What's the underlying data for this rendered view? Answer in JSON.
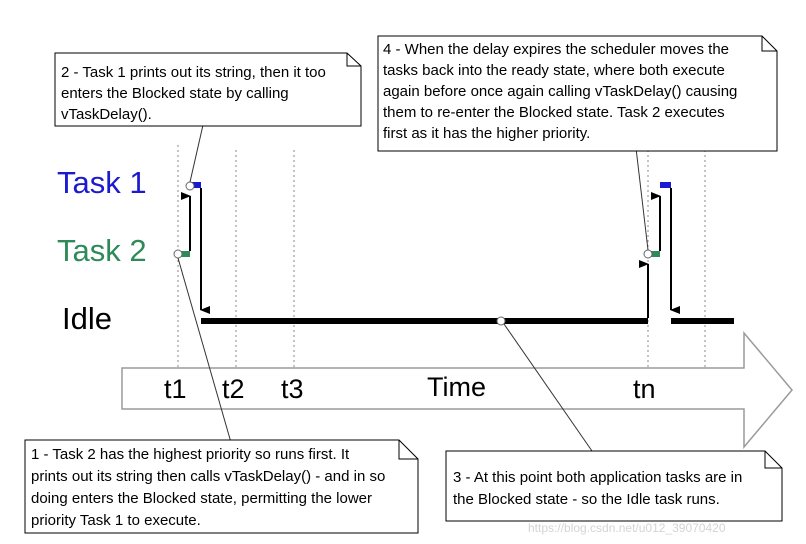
{
  "rows": {
    "task1": {
      "label": "Task 1",
      "color": "#1a1ad0"
    },
    "task2": {
      "label": "Task 2",
      "color": "#2e8b57"
    },
    "idle": {
      "label": "Idle",
      "color": "#000000"
    }
  },
  "axis": {
    "time_label": "Time",
    "ticks": [
      "t1",
      "t2",
      "t3",
      "tn"
    ]
  },
  "notes": {
    "note1": [
      "1 - Task 2 has the highest priority so runs first.  It",
      "prints out its string then calls vTaskDelay() - and in so",
      "doing enters the Blocked state, permitting the lower",
      "priority Task 1 to execute."
    ],
    "note2": [
      "2 - Task 1 prints out its string, then it too",
      "enters the Blocked state by calling",
      "vTaskDelay()."
    ],
    "note3": [
      "3 - At this point both application tasks are in",
      "the Blocked state - so the Idle task runs."
    ],
    "note4": [
      "4 - When the delay expires the scheduler moves the",
      "tasks back into the ready state, where both execute",
      "again before once again calling vTaskDelay() causing",
      "them to re-enter the Blocked state.  Task 2 executes",
      "first as it has the higher priority."
    ]
  },
  "watermark": "https://blog.csdn.net/u012_39070420"
}
